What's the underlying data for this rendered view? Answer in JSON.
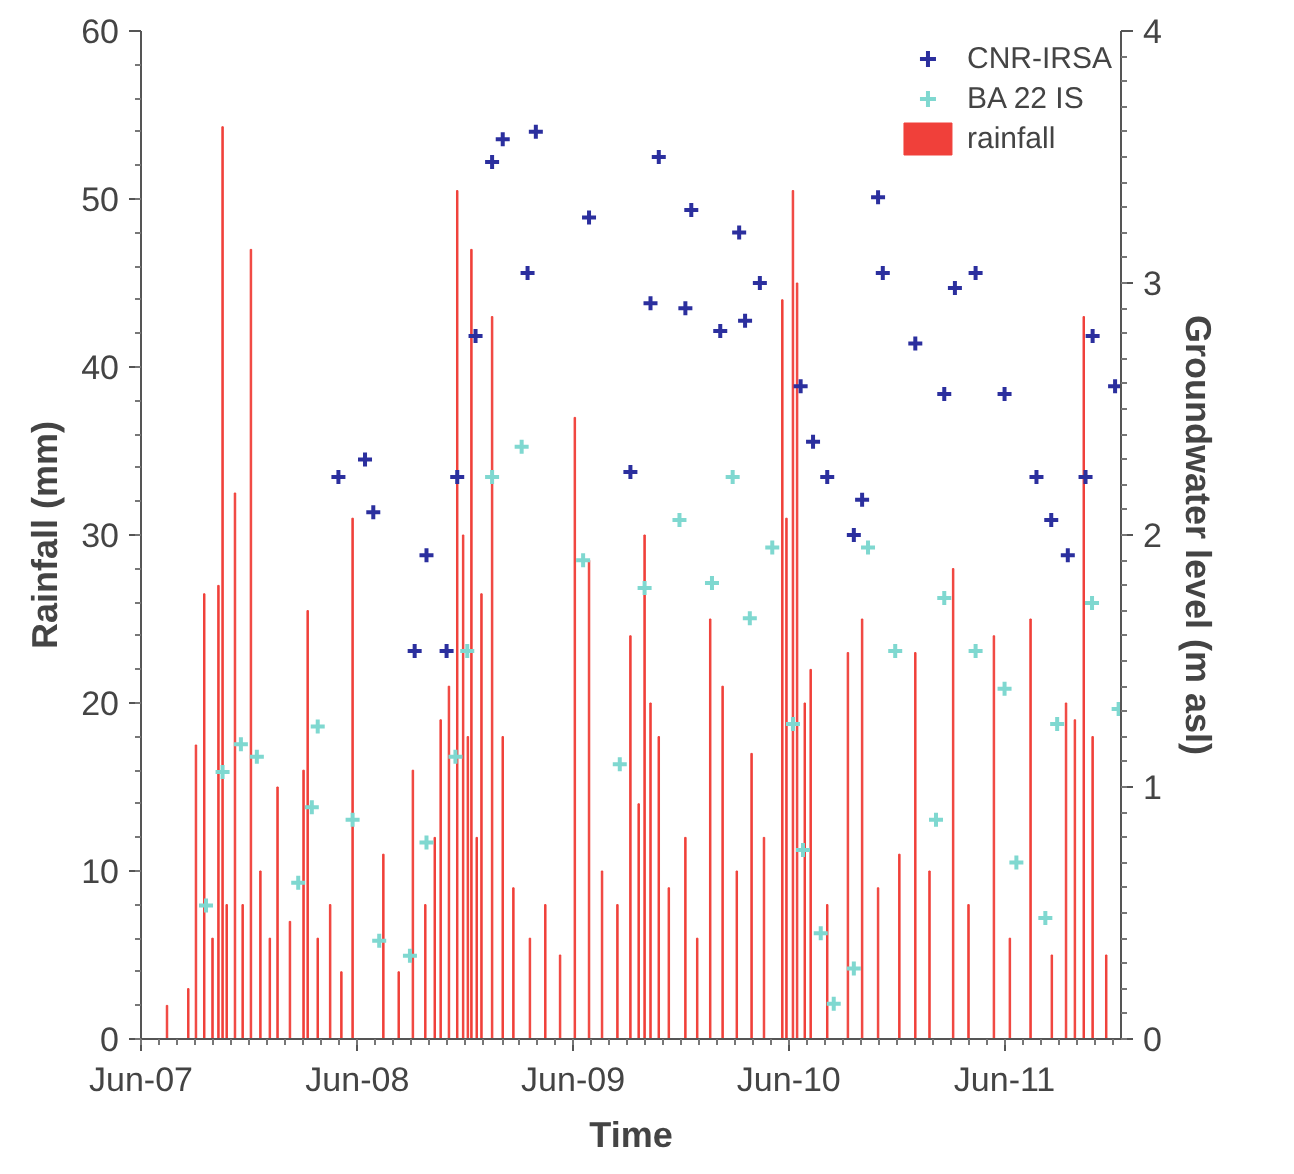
{
  "chart_data": {
    "type": "scatter",
    "xlabel": "Time",
    "ylabel": "Rainfall (mm)",
    "y2label": "Groundwater level (m asl)",
    "xlim": [
      "2007-06-01",
      "2011-12-15"
    ],
    "xticks": [
      {
        "value": "2007-06-01",
        "label": "Jun-07"
      },
      {
        "value": "2008-06-01",
        "label": "Jun-08"
      },
      {
        "value": "2009-06-01",
        "label": "Jun-09"
      },
      {
        "value": "2010-06-01",
        "label": "Jun-10"
      },
      {
        "value": "2011-06-01",
        "label": "Jun-11"
      }
    ],
    "ylim": [
      0,
      60
    ],
    "yticks": [
      0,
      10,
      20,
      30,
      40,
      50,
      60
    ],
    "y2lim": [
      0,
      4
    ],
    "y2ticks": [
      0,
      1,
      2,
      3,
      4
    ],
    "grid": false,
    "legend": "top right",
    "marker": "cross",
    "series": [
      {
        "name": "CNR-IRSA",
        "axis": "y2",
        "color": "#2b2f9e",
        "x": [
          "2008-04-30",
          "2008-06-14",
          "2008-06-28",
          "2008-09-06",
          "2008-09-26",
          "2008-10-30",
          "2008-11-17",
          "2008-12-18",
          "2009-01-15",
          "2009-02-02",
          "2009-03-16",
          "2009-03-30",
          "2009-06-28",
          "2009-09-06",
          "2009-10-10",
          "2009-10-24",
          "2009-12-08",
          "2009-12-18",
          "2010-02-05",
          "2010-03-09",
          "2010-03-19",
          "2010-04-13",
          "2010-06-21",
          "2010-07-12",
          "2010-08-05",
          "2010-09-19",
          "2010-10-03",
          "2010-10-30",
          "2010-11-07",
          "2011-01-01",
          "2011-02-19",
          "2011-03-09",
          "2011-04-13",
          "2011-06-01",
          "2011-07-25",
          "2011-08-19",
          "2011-09-16",
          "2011-10-16",
          "2011-10-28",
          "2011-12-05"
        ],
        "values": [
          2.23,
          2.3,
          2.09,
          1.54,
          1.92,
          1.54,
          2.23,
          2.79,
          3.48,
          3.57,
          3.04,
          3.6,
          3.26,
          2.25,
          2.92,
          3.5,
          2.9,
          3.29,
          2.81,
          3.2,
          2.85,
          3.0,
          2.59,
          2.37,
          2.23,
          2.0,
          2.14,
          3.34,
          3.04,
          2.76,
          2.56,
          2.98,
          3.04,
          2.56,
          2.23,
          2.06,
          1.92,
          2.23,
          2.79,
          2.59
        ]
      },
      {
        "name": "BA 22 IS",
        "axis": "y2",
        "color": "#7fd8d0",
        "x": [
          "2007-09-19",
          "2007-10-17",
          "2007-11-17",
          "2007-12-14",
          "2008-02-22",
          "2008-03-16",
          "2008-03-26",
          "2008-05-24",
          "2008-07-08",
          "2008-08-29",
          "2008-09-26",
          "2008-11-14",
          "2008-12-04",
          "2009-01-15",
          "2009-03-06",
          "2009-06-18",
          "2009-08-19",
          "2009-09-30",
          "2009-11-28",
          "2010-01-22",
          "2010-02-26",
          "2010-03-27",
          "2010-05-04",
          "2010-06-08",
          "2010-06-25",
          "2010-07-25",
          "2010-08-16",
          "2010-09-19",
          "2010-10-13",
          "2010-11-28",
          "2011-02-05",
          "2011-02-19",
          "2011-04-13",
          "2011-06-01",
          "2011-06-21",
          "2011-08-09",
          "2011-08-29",
          "2011-10-27",
          "2011-12-11"
        ],
        "values": [
          0.53,
          1.06,
          1.17,
          1.12,
          0.62,
          0.92,
          1.24,
          0.87,
          0.39,
          0.33,
          0.78,
          1.12,
          1.54,
          2.23,
          2.35,
          1.9,
          1.09,
          1.79,
          2.06,
          1.81,
          2.23,
          1.67,
          1.95,
          1.25,
          0.75,
          0.42,
          0.14,
          0.28,
          1.95,
          1.54,
          0.87,
          1.75,
          1.54,
          1.39,
          0.7,
          0.48,
          1.25,
          1.73,
          1.31
        ]
      },
      {
        "name": "rainfall",
        "type": "bar",
        "color": "#f0403a",
        "x": [
          "2007-07-15",
          "2007-08-20",
          "2007-09-02",
          "2007-09-16",
          "2007-09-30",
          "2007-10-10",
          "2007-10-17",
          "2007-10-24",
          "2007-11-07",
          "2007-11-20",
          "2007-12-04",
          "2007-12-20",
          "2008-01-05",
          "2008-01-18",
          "2008-02-08",
          "2008-03-02",
          "2008-03-09",
          "2008-03-26",
          "2008-04-16",
          "2008-05-05",
          "2008-05-24",
          "2008-07-15",
          "2008-08-10",
          "2008-09-03",
          "2008-09-24",
          "2008-10-10",
          "2008-10-20",
          "2008-11-03",
          "2008-11-17",
          "2008-11-27",
          "2008-12-05",
          "2008-12-11",
          "2008-12-20",
          "2008-12-28",
          "2009-01-15",
          "2009-02-02",
          "2009-02-20",
          "2009-03-20",
          "2009-04-15",
          "2009-05-10",
          "2009-06-04",
          "2009-06-28",
          "2009-07-20",
          "2009-08-15",
          "2009-09-06",
          "2009-09-20",
          "2009-09-30",
          "2009-10-10",
          "2009-10-24",
          "2009-11-10",
          "2009-12-08",
          "2009-12-28",
          "2010-01-19",
          "2010-02-09",
          "2010-03-05",
          "2010-03-30",
          "2010-04-20",
          "2010-05-21",
          "2010-05-28",
          "2010-06-08",
          "2010-06-15",
          "2010-06-28",
          "2010-07-08",
          "2010-08-05",
          "2010-09-09",
          "2010-10-03",
          "2010-10-30",
          "2010-12-05",
          "2011-01-01",
          "2011-01-25",
          "2011-03-06",
          "2011-04-01",
          "2011-05-14",
          "2011-06-10",
          "2011-07-15",
          "2011-08-20",
          "2011-09-13",
          "2011-09-28",
          "2011-10-13",
          "2011-10-28",
          "2011-11-20"
        ],
        "values": [
          2,
          3,
          17.5,
          26.5,
          6,
          27,
          54.3,
          8,
          32.5,
          8,
          47,
          10,
          6,
          15,
          7,
          16,
          25.5,
          6,
          8,
          4,
          31,
          11,
          4,
          16,
          8,
          12,
          19,
          21,
          50.5,
          30,
          18,
          47,
          12,
          26.5,
          43,
          18,
          9,
          6,
          8,
          5,
          37,
          28.5,
          10,
          8,
          24,
          14,
          30,
          20,
          18,
          9,
          12,
          6,
          25,
          21,
          10,
          17,
          12,
          44,
          31,
          50.5,
          45,
          20,
          22,
          8,
          23,
          25,
          9,
          11,
          23,
          10,
          28,
          8,
          24,
          6,
          25,
          5,
          20,
          19,
          43,
          18,
          5
        ]
      }
    ]
  }
}
